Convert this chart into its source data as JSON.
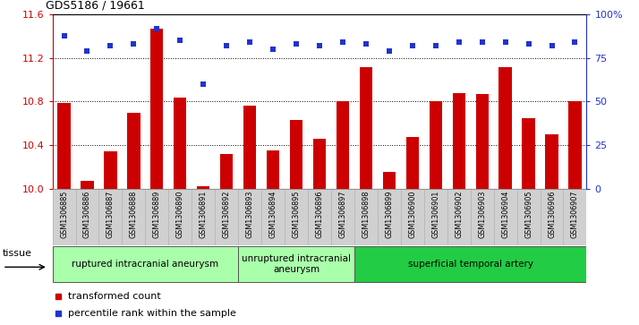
{
  "title": "GDS5186 / 19661",
  "samples": [
    "GSM1306885",
    "GSM1306886",
    "GSM1306887",
    "GSM1306888",
    "GSM1306889",
    "GSM1306890",
    "GSM1306891",
    "GSM1306892",
    "GSM1306893",
    "GSM1306894",
    "GSM1306895",
    "GSM1306896",
    "GSM1306897",
    "GSM1306898",
    "GSM1306899",
    "GSM1306900",
    "GSM1306901",
    "GSM1306902",
    "GSM1306903",
    "GSM1306904",
    "GSM1306905",
    "GSM1306906",
    "GSM1306907"
  ],
  "transformed_count": [
    10.79,
    10.07,
    10.34,
    10.7,
    11.47,
    10.84,
    10.02,
    10.32,
    10.76,
    10.35,
    10.63,
    10.46,
    10.8,
    11.12,
    10.15,
    10.47,
    10.8,
    10.88,
    10.87,
    11.12,
    10.65,
    10.5,
    10.8
  ],
  "percentile_rank": [
    88,
    79,
    82,
    83,
    92,
    85,
    60,
    82,
    84,
    80,
    83,
    82,
    84,
    83,
    79,
    82,
    82,
    84,
    84,
    84,
    83,
    82,
    84
  ],
  "left_ylim": [
    10.0,
    11.6
  ],
  "right_ylim": [
    0,
    100
  ],
  "left_yticks": [
    10.0,
    10.4,
    10.8,
    11.2,
    11.6
  ],
  "right_yticks": [
    0,
    25,
    50,
    75,
    100
  ],
  "hlines": [
    10.4,
    10.8,
    11.2
  ],
  "bar_color": "#CC0000",
  "dot_color": "#2233CC",
  "group_bounds": [
    {
      "start": 0,
      "end": 8,
      "label": "ruptured intracranial aneurysm",
      "color": "#AAFFAA"
    },
    {
      "start": 8,
      "end": 13,
      "label": "unruptured intracranial\naneurysm",
      "color": "#AAFFAA"
    },
    {
      "start": 13,
      "end": 23,
      "label": "superficial temporal artery",
      "color": "#22CC44"
    }
  ],
  "tissue_label": "tissue",
  "legend_bar_label": "transformed count",
  "legend_dot_label": "percentile rank within the sample",
  "xtick_bg": "#D0D0D0",
  "plot_bg": "#FFFFFF"
}
